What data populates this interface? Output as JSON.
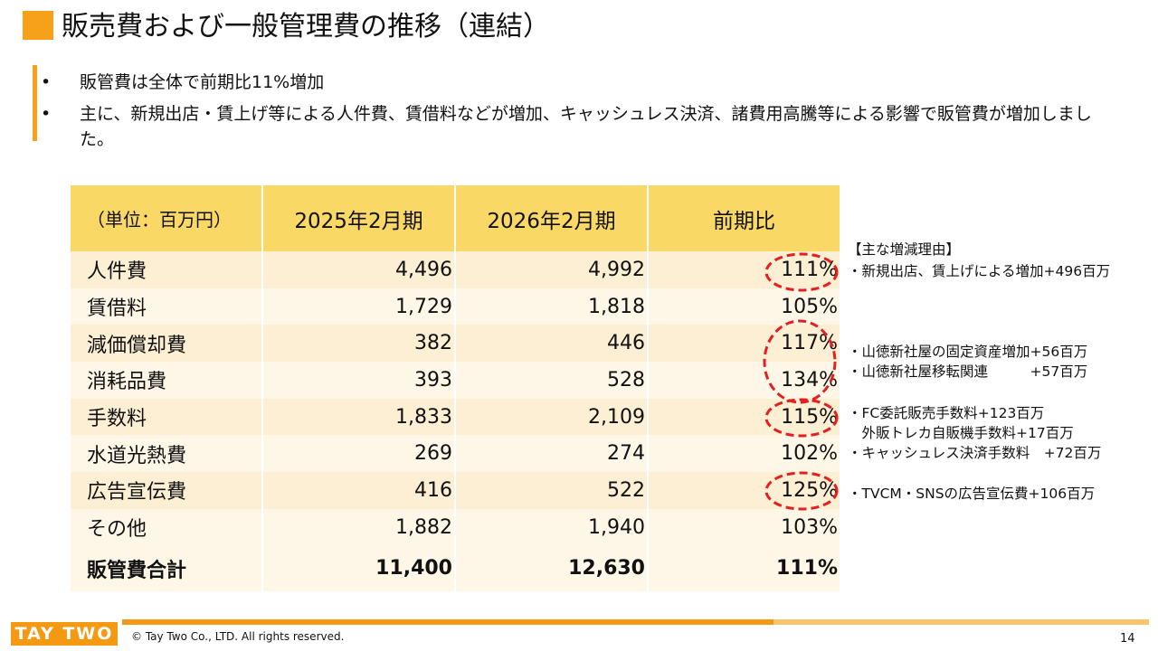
{
  "header": {
    "title": "販売費および一般管理費の推移（連結）"
  },
  "bullets": [
    "販管費は全体で前期比11%増加",
    "主に、新規出店・賃上げ等による人件費、賃借料などが増加、キャッシュレス決済、諸費用高騰等による影響で販管費が増加しました。"
  ],
  "table": {
    "columns": [
      "（単位：百万円）",
      "2025年2月期",
      "2026年2月期",
      "前期比"
    ],
    "rows": [
      [
        "人件費",
        "4,496",
        "4,992",
        "111%"
      ],
      [
        "賃借料",
        "1,729",
        "1,818",
        "105%"
      ],
      [
        "減価償却費",
        "382",
        "446",
        "117%"
      ],
      [
        "消耗品費",
        "393",
        "528",
        "134%"
      ],
      [
        "手数料",
        "1,833",
        "2,109",
        "115%"
      ],
      [
        "水道光熱費",
        "269",
        "274",
        "102%"
      ],
      [
        "広告宣伝費",
        "416",
        "522",
        "125%"
      ],
      [
        "その他",
        "1,882",
        "1,940",
        "103%"
      ]
    ],
    "total": [
      "販管費合計",
      "11,400",
      "12,630",
      "111%"
    ]
  },
  "notes": {
    "heading": "【主な増減理由】",
    "items": [
      "・新規出店、賃上げによる増加+496百万",
      "・山徳新社屋の固定資産増加+56百万",
      "・山徳新社屋移転関連　　　+57百万",
      "・FC委託販売手数料+123百万",
      "　外販トレカ自販機手数料+17百万",
      "・キャッシュレス決済手数料　+72百万",
      "・TVCM・SNSの広告宣伝費+106百万"
    ]
  },
  "footer": {
    "logo": "TAY TWO",
    "copyright": "© Tay Two Co., LTD. All rights reserved.",
    "page": "14"
  }
}
